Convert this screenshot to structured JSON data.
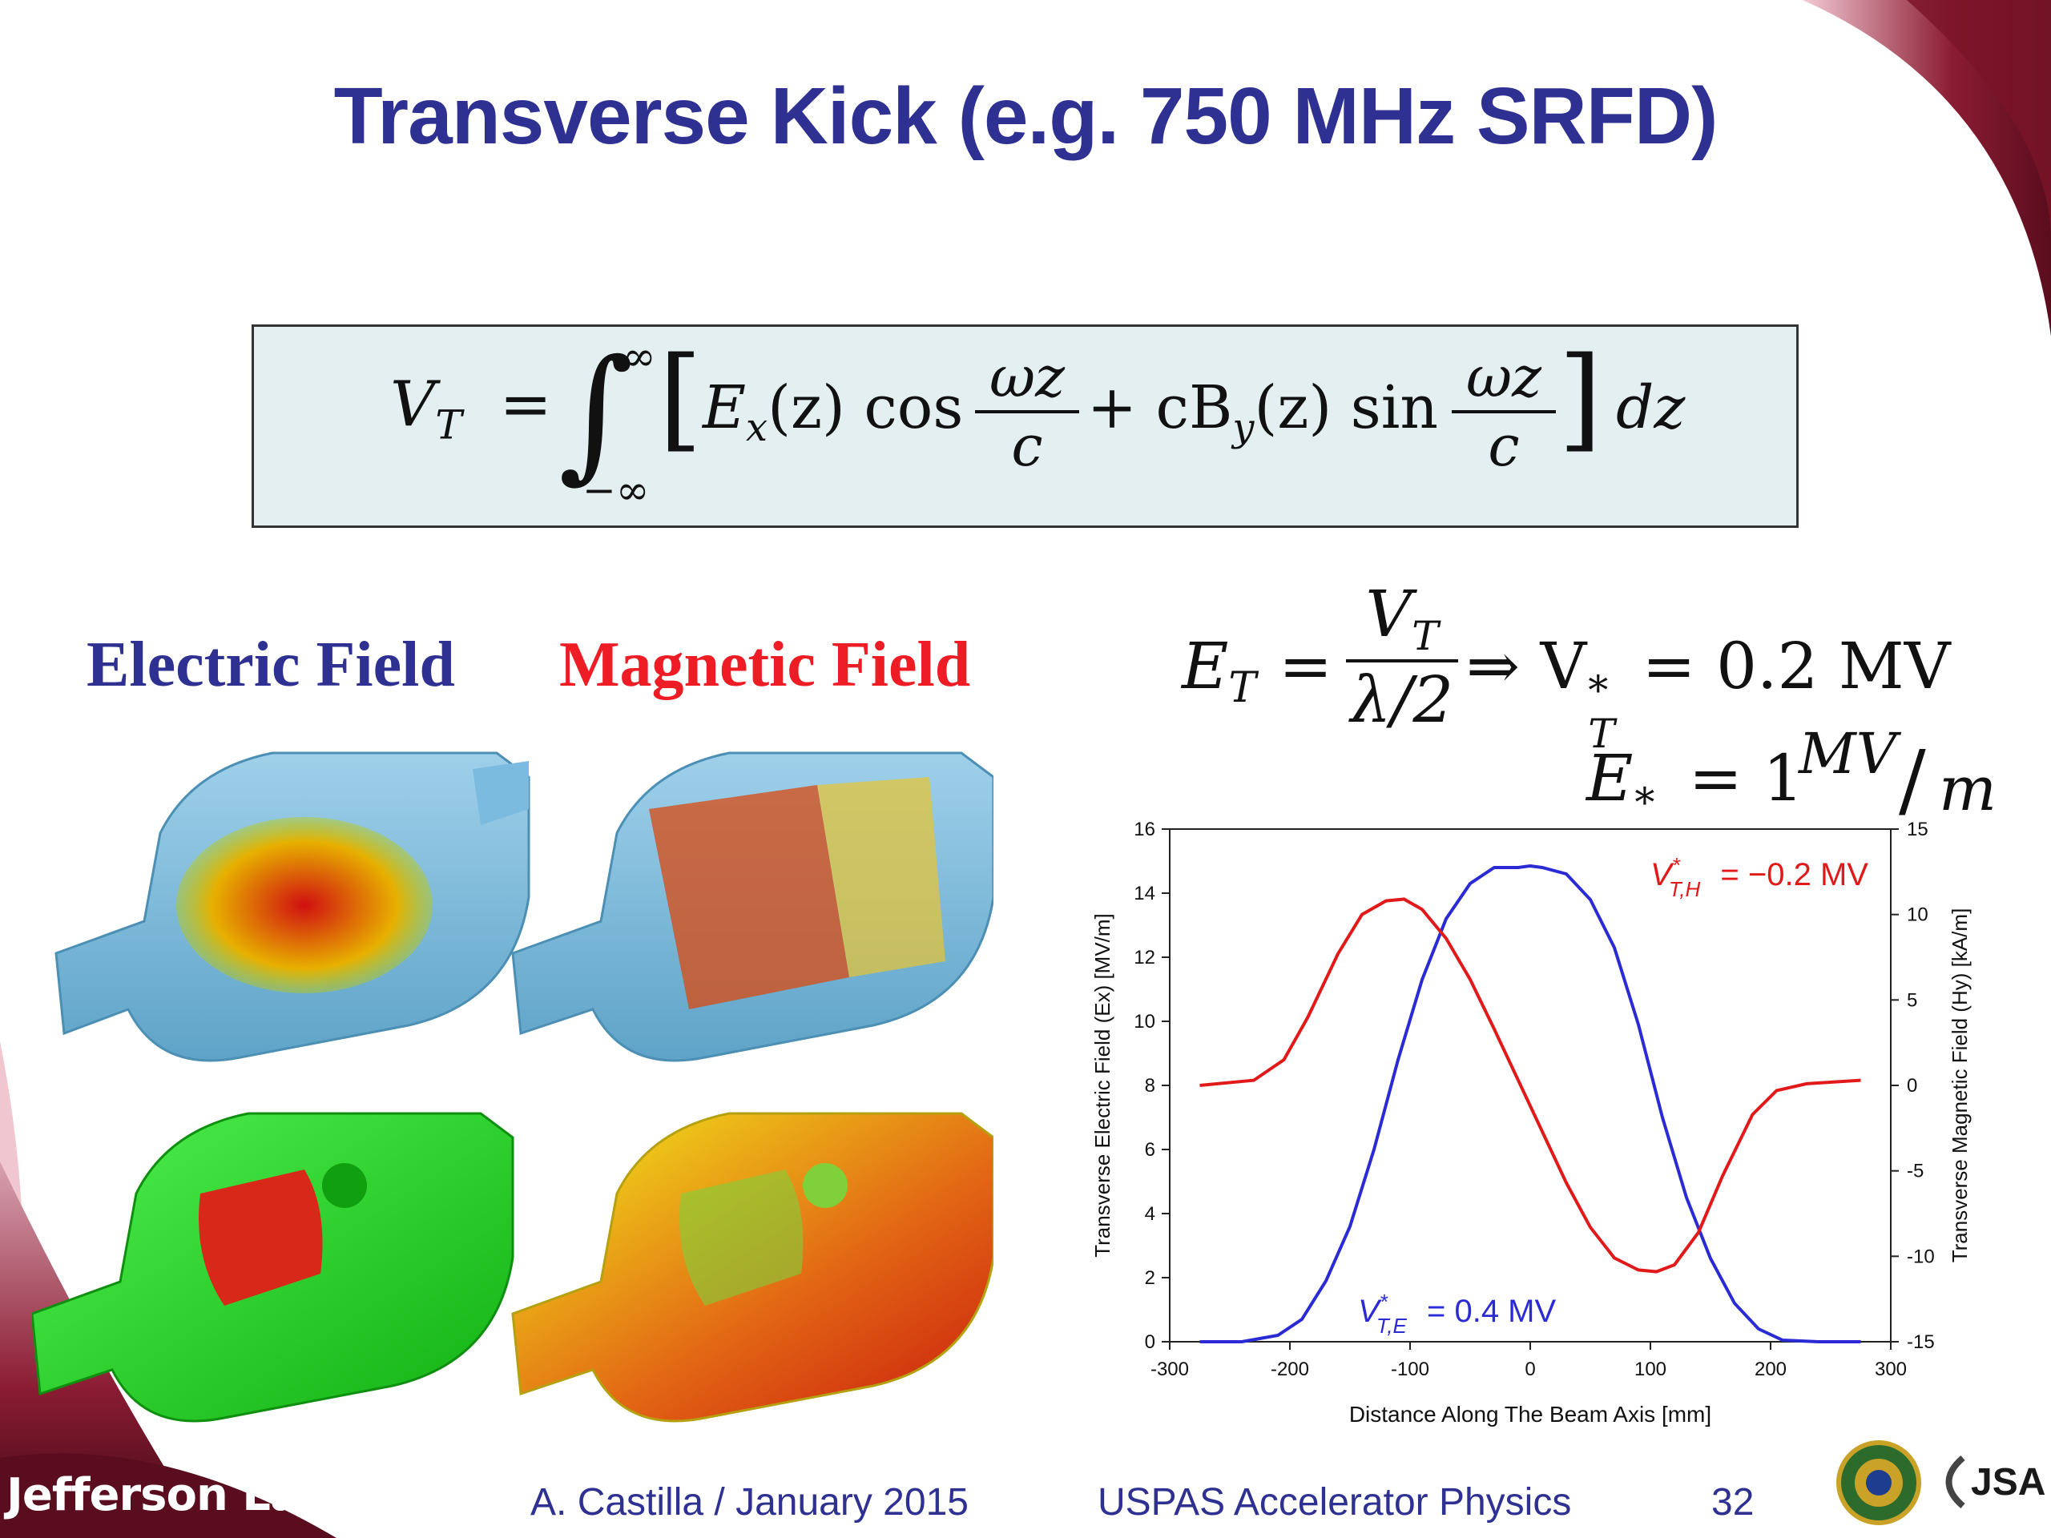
{
  "slide": {
    "title": "Transverse Kick (e.g. 750 MHz SRFD)",
    "equation_main": {
      "lhs": "V",
      "lhs_sub": "T",
      "eq": "=",
      "int_upper": "∞",
      "int_lower": "−∞",
      "term1": "E",
      "term1_sub": "x",
      "term1_arg": "(z) cos",
      "frac_num": "ωz",
      "frac_den": "c",
      "plus": "+ cB",
      "term2_sub": "y",
      "term2_arg": "(z) sin",
      "dz": "dz"
    },
    "equation_right": {
      "lhs": "E",
      "lhs_sub": "T",
      "num": "V",
      "num_sub": "T",
      "den": "λ/2",
      "implies": "⇒ V",
      "vt_sup": "*",
      "vt_sub": "T",
      "vt_value": "= 0.2 MV",
      "et_label": "E",
      "et_sup": "*",
      "et_sub": "T",
      "et_value": "= 1",
      "et_unit_num": "MV",
      "et_unit_den": "m"
    },
    "electric_label": "Electric Field",
    "magnetic_label": "Magnetic Field",
    "electric_color": "#2e3192",
    "magnetic_color": "#ee1c24",
    "footer": {
      "logo_text": "Jefferson Lab",
      "author": "A. Castilla / January 2015",
      "course": "USPAS Accelerator Physics",
      "page": "32",
      "jsa": "JSA"
    }
  },
  "chart_data": {
    "type": "line",
    "xlabel": "Distance Along The Beam Axis [mm]",
    "ylabel": "Transverse Electric Field (Ex) [MV/m]",
    "y2label": "Transverse Magnetic Field (Hy) [kA/m]",
    "xlim": [
      -300,
      300
    ],
    "ylim": [
      0,
      16
    ],
    "y2lim": [
      -15,
      15
    ],
    "x_ticks": [
      "-300",
      "-200",
      "-100",
      "0",
      "100",
      "200",
      "300"
    ],
    "y_ticks": [
      "0",
      "2",
      "4",
      "6",
      "8",
      "10",
      "12",
      "14",
      "16"
    ],
    "y2_ticks": [
      "-15",
      "-10",
      "-5",
      "0",
      "5",
      "10",
      "15"
    ],
    "series": [
      {
        "name": "E",
        "axis": "left",
        "color": "#2b2bd6",
        "x": [
          -275,
          -240,
          -210,
          -190,
          -170,
          -150,
          -130,
          -110,
          -90,
          -70,
          -50,
          -30,
          -10,
          0,
          10,
          30,
          50,
          70,
          90,
          110,
          130,
          150,
          170,
          190,
          210,
          240,
          275
        ],
        "y": [
          0,
          0,
          0.2,
          0.7,
          1.9,
          3.6,
          6.0,
          8.8,
          11.3,
          13.2,
          14.3,
          14.8,
          14.8,
          14.85,
          14.8,
          14.6,
          13.8,
          12.3,
          9.9,
          7.0,
          4.5,
          2.6,
          1.2,
          0.4,
          0.05,
          0,
          0
        ]
      },
      {
        "name": "H",
        "axis": "right",
        "color": "#e11919",
        "x": [
          -275,
          -230,
          -205,
          -185,
          -160,
          -140,
          -120,
          -105,
          -90,
          -70,
          -50,
          -30,
          -10,
          10,
          30,
          50,
          70,
          90,
          105,
          120,
          140,
          160,
          185,
          205,
          230,
          275
        ],
        "y": [
          0,
          0.3,
          1.5,
          4.0,
          7.7,
          10.0,
          10.8,
          10.9,
          10.3,
          8.6,
          6.2,
          3.3,
          0.3,
          -2.7,
          -5.7,
          -8.3,
          -10.1,
          -10.8,
          -10.9,
          -10.5,
          -8.6,
          -5.3,
          -1.7,
          -0.3,
          0.1,
          0.3
        ]
      }
    ],
    "annotations": [
      {
        "text": "V*T,H = −0.2 MV",
        "color": "#e11919"
      },
      {
        "text": "V*T,E = 0.4 MV",
        "color": "#2b2bd6"
      }
    ],
    "annotation_parts": {
      "h_sub": "T,H",
      "h_val": "= −0.2 MV",
      "e_sub": "T,E",
      "e_val": "= 0.4 MV",
      "v": "V",
      "star": "*"
    }
  }
}
